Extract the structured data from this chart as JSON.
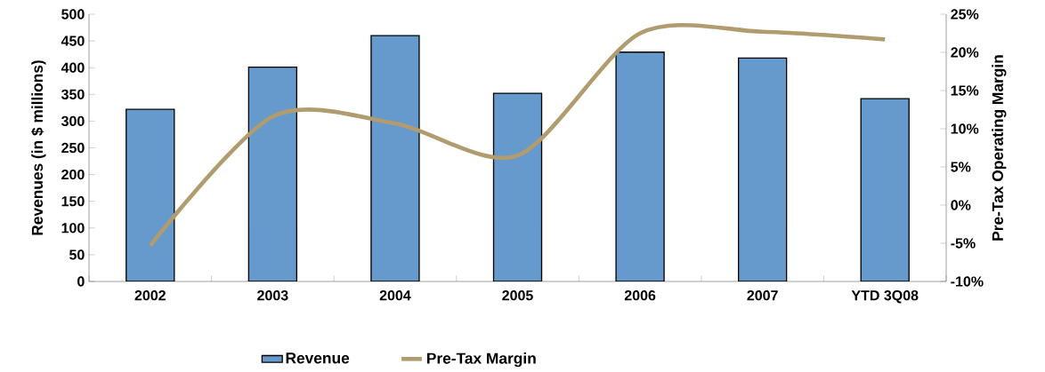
{
  "chart_data": {
    "type": "bar",
    "categories": [
      "2002",
      "2003",
      "2004",
      "2005",
      "2006",
      "2007",
      "YTD 3Q08"
    ],
    "ylabel": "Revenues (in $ millions)",
    "y2label": "Pre-Tax Operating Margin",
    "ylim": [
      0,
      500
    ],
    "yticks": [
      0,
      50,
      100,
      150,
      200,
      250,
      300,
      350,
      400,
      450,
      500
    ],
    "y2lim": [
      -10,
      25
    ],
    "y2ticks": [
      {
        "value": -10,
        "label": "-10%"
      },
      {
        "value": -5,
        "label": "-5%"
      },
      {
        "value": 0,
        "label": "0%"
      },
      {
        "value": 5,
        "label": "5%"
      },
      {
        "value": 10,
        "label": "10%"
      },
      {
        "value": 15,
        "label": "15%"
      },
      {
        "value": 20,
        "label": "20%"
      },
      {
        "value": 25,
        "label": "25%"
      }
    ],
    "legend": "bottom",
    "marker": "none",
    "line_style": "solid",
    "series": [
      {
        "name": "Revenue",
        "color": "#6699cc",
        "values": [
          322,
          401,
          460,
          352,
          429,
          418,
          342
        ]
      },
      {
        "name": "Pre-Tax Margin",
        "type": "line",
        "axis": "y2",
        "color": "#b09c6e",
        "values": [
          -5.3,
          11.6,
          10.7,
          6.5,
          22.5,
          22.7,
          21.7
        ]
      }
    ]
  }
}
